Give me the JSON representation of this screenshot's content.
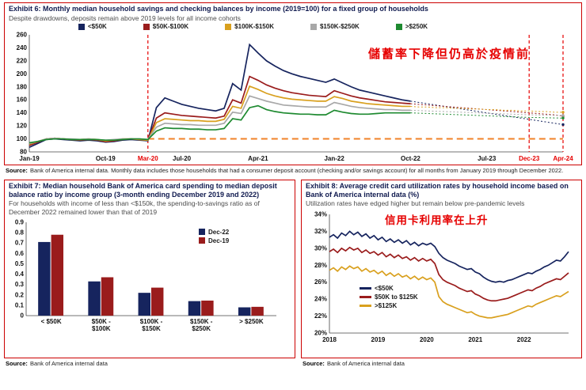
{
  "colors": {
    "navy": "#16245e",
    "dark_red": "#9a1c1c",
    "gold": "#d9a01e",
    "gray": "#a8a8a8",
    "green": "#1e8a30",
    "red_accent": "#e60000",
    "orange": "#f08228"
  },
  "exhibit6": {
    "title": "Exhibit 6: Monthly median household savings and checking balances by income (2019=100)  for a fixed group of households",
    "subtitle": "Despite drawdowns, deposits remain above 2019 levels for all income cohorts",
    "annotation": "儲蓄率下降但仍高於疫情前",
    "source_label": "Source:",
    "source_text": "Bank of America internal data. Monthly data includes those households  that had a consumer  deposit account  (checking  and/or savings account)  for all months from January 2019 through December  2022."
  },
  "exhibit7": {
    "title": "Exhibit 7: Median household Bank of America card spending to median deposit balance ratio  by income group (3-month ending December 2019 and 2022)",
    "subtitle": "For households with income of less than <$150k, the spending-to-savings ratio as of December 2022 remained lower than that of 2019",
    "source_label": "Source:",
    "source_text": "Bank of America internal data"
  },
  "exhibit8": {
    "title": "Exhibit 8: Average credit card utilization rates by household income based on Bank of America internal data (%)",
    "subtitle": "Utilization rates have edged higher but remain below pre-pandemic levels",
    "annotation": "信用卡利用率在上升",
    "source_label": "Source:",
    "source_text": "Bank of America internal data"
  },
  "chart_data": [
    {
      "id": "exhibit6",
      "type": "line",
      "title": "Monthly median household savings and checking balances by income (2019=100)",
      "x_unit": "months since Jan-2019, solid through Oct-22, dotted forecast to Apr-24",
      "ylim": [
        80,
        260
      ],
      "ytick_step": 20,
      "solid_end_index": 45,
      "reference_line": {
        "y": 100,
        "from_index": 14,
        "color": "orange",
        "width": 2,
        "dash": "8,5"
      },
      "vlines": {
        "indexes": [
          14,
          59,
          63
        ],
        "color": "red_accent"
      },
      "xticks": [
        {
          "label": "Jan-19",
          "i": 0
        },
        {
          "label": "Oct-19",
          "i": 9
        },
        {
          "label": "Mar-20",
          "i": 14,
          "red": true
        },
        {
          "label": "Jul-20",
          "i": 18
        },
        {
          "label": "Apr-21",
          "i": 27
        },
        {
          "label": "Jan-22",
          "i": 36
        },
        {
          "label": "Oct-22",
          "i": 45
        },
        {
          "label": "Jul-23",
          "i": 54
        },
        {
          "label": "Dec-23",
          "i": 59,
          "red": true
        },
        {
          "label": "Apr-24",
          "i": 63,
          "red": true
        }
      ],
      "series": [
        {
          "name": "<$50K",
          "color": "navy",
          "values": [
            87,
            93,
            99,
            100,
            99,
            98,
            97,
            98,
            97,
            95,
            96,
            98,
            99,
            98,
            97,
            148,
            163,
            158,
            153,
            150,
            147,
            145,
            143,
            147,
            185,
            175,
            245,
            232,
            220,
            212,
            205,
            200,
            196,
            193,
            190,
            187,
            192,
            186,
            180,
            175,
            172,
            169,
            166,
            163,
            160,
            158,
            156,
            154,
            152,
            150,
            148,
            146,
            144,
            142,
            140,
            138,
            136,
            134,
            132,
            130,
            128,
            126,
            124,
            122
          ]
        },
        {
          "name": "$50K-$100K",
          "color": "dark_red",
          "values": [
            90,
            95,
            100,
            101,
            100,
            99,
            98,
            99,
            98,
            96,
            97,
            99,
            100,
            99,
            98,
            132,
            140,
            138,
            136,
            135,
            134,
            133,
            132,
            135,
            160,
            155,
            196,
            190,
            183,
            178,
            174,
            171,
            169,
            167,
            166,
            165,
            174,
            170,
            166,
            163,
            161,
            159,
            157,
            156,
            155,
            154,
            153,
            152,
            151,
            150,
            149,
            148,
            147,
            146,
            145,
            144,
            143,
            142,
            141,
            140,
            139,
            138,
            137,
            135
          ]
        },
        {
          "name": "$100K-$150K",
          "color": "gold",
          "values": [
            92,
            96,
            100,
            101,
            100,
            99,
            99,
            100,
            99,
            97,
            98,
            100,
            100,
            99,
            98,
            125,
            131,
            130,
            129,
            128,
            128,
            127,
            127,
            130,
            150,
            147,
            181,
            176,
            170,
            166,
            163,
            161,
            160,
            159,
            158,
            158,
            165,
            162,
            158,
            156,
            154,
            153,
            152,
            151,
            150,
            150,
            149,
            149,
            148,
            148,
            147,
            147,
            146,
            146,
            145,
            145,
            144,
            144,
            143,
            143,
            142,
            142,
            141,
            141
          ]
        },
        {
          "name": "$150K-$250K",
          "color": "gray",
          "values": [
            93,
            96,
            100,
            101,
            100,
            100,
            99,
            100,
            99,
            98,
            99,
            100,
            100,
            100,
            99,
            118,
            124,
            123,
            122,
            122,
            121,
            121,
            121,
            124,
            141,
            139,
            166,
            162,
            158,
            155,
            152,
            151,
            150,
            149,
            149,
            149,
            156,
            153,
            150,
            148,
            147,
            146,
            145,
            145,
            144,
            144,
            143.5,
            143,
            142.5,
            142,
            141.5,
            141,
            140.5,
            140,
            139.5,
            139,
            138.5,
            138,
            137.5,
            137,
            136.8,
            136.5,
            136.2,
            136
          ]
        },
        {
          "name": ">$250K",
          "color": "green",
          "values": [
            94,
            96,
            99,
            100,
            100,
            99,
            99,
            99,
            99,
            98,
            98,
            99,
            100,
            100,
            99,
            112,
            117,
            116,
            116,
            115,
            115,
            114,
            114,
            116,
            131,
            129,
            148,
            151,
            145,
            142,
            140,
            139,
            138,
            138,
            137,
            137,
            144,
            141,
            139,
            138,
            138,
            139,
            140,
            140,
            140,
            140,
            139.5,
            139,
            138.5,
            138,
            137.5,
            137,
            136.5,
            136,
            135.5,
            135,
            134.5,
            134,
            133.5,
            133,
            132.8,
            132.5,
            132.2,
            132
          ]
        }
      ],
      "legend_position": "top"
    },
    {
      "id": "exhibit7",
      "type": "bar",
      "title": "Median card spending to median deposit balance ratio by income group",
      "ylim": [
        0,
        0.9
      ],
      "ytick_step": 0.1,
      "ytick_decimals": 1,
      "categories": [
        [
          "< $50K"
        ],
        [
          "$50K -",
          "$100K"
        ],
        [
          "$100K -",
          "$150K"
        ],
        [
          "$150K -",
          "$250K"
        ],
        [
          "> $250K"
        ]
      ],
      "series": [
        {
          "name": "Dec-22",
          "color": "navy",
          "values": [
            0.71,
            0.33,
            0.22,
            0.14,
            0.08
          ]
        },
        {
          "name": "Dec-19",
          "color": "dark_red",
          "values": [
            0.78,
            0.37,
            0.27,
            0.145,
            0.085
          ]
        }
      ],
      "legend_position": "top-right"
    },
    {
      "id": "exhibit8",
      "type": "line",
      "title": "Average credit card utilization rates by household income (%)",
      "x_unit": "months Jan-2018 through Dec-2022",
      "ylim": [
        20,
        34
      ],
      "ytick_step": 2,
      "ytick_suffix": "%",
      "xticks": [
        {
          "label": "2018",
          "i": 0
        },
        {
          "label": "2019",
          "i": 12
        },
        {
          "label": "2020",
          "i": 24
        },
        {
          "label": "2021",
          "i": 36
        },
        {
          "label": "2022",
          "i": 48
        }
      ],
      "series": [
        {
          "name": "<$50K",
          "color": "navy",
          "values": [
            31.3,
            31.6,
            31.2,
            31.8,
            31.5,
            32.0,
            31.6,
            31.9,
            31.4,
            31.7,
            31.2,
            31.5,
            31.0,
            31.3,
            30.8,
            31.1,
            30.7,
            31.0,
            30.6,
            30.9,
            30.4,
            30.7,
            30.3,
            30.6,
            30.4,
            30.6,
            30.2,
            29.4,
            28.9,
            28.6,
            28.4,
            28.2,
            27.9,
            27.7,
            27.5,
            27.6,
            27.2,
            27.0,
            26.6,
            26.3,
            26.1,
            26.0,
            26.1,
            26.0,
            26.2,
            26.3,
            26.5,
            26.7,
            26.9,
            27.1,
            27.0,
            27.3,
            27.5,
            27.8,
            28.0,
            28.3,
            28.6,
            28.5,
            29.0,
            29.6
          ]
        },
        {
          "name": "$50K to $125K",
          "color": "dark_red",
          "values": [
            29.6,
            29.9,
            29.5,
            30.0,
            29.7,
            30.1,
            29.8,
            30.0,
            29.5,
            29.8,
            29.4,
            29.6,
            29.2,
            29.5,
            29.0,
            29.3,
            28.9,
            29.2,
            28.8,
            29.0,
            28.6,
            28.9,
            28.5,
            28.8,
            28.5,
            28.7,
            28.2,
            26.9,
            26.3,
            26.0,
            25.8,
            25.6,
            25.3,
            25.1,
            24.9,
            25.0,
            24.6,
            24.4,
            24.1,
            23.9,
            23.8,
            23.8,
            23.9,
            24.0,
            24.1,
            24.3,
            24.5,
            24.7,
            24.9,
            25.1,
            25.0,
            25.3,
            25.5,
            25.8,
            26.0,
            26.2,
            26.4,
            26.3,
            26.7,
            27.1
          ]
        },
        {
          "name": ">$125K",
          "color": "gold",
          "values": [
            27.4,
            27.7,
            27.3,
            27.8,
            27.5,
            27.9,
            27.6,
            27.8,
            27.3,
            27.6,
            27.2,
            27.4,
            27.0,
            27.3,
            26.8,
            27.1,
            26.7,
            27.0,
            26.6,
            26.8,
            26.4,
            26.7,
            26.3,
            26.6,
            26.3,
            26.5,
            26.0,
            24.3,
            23.7,
            23.4,
            23.2,
            23.0,
            22.8,
            22.6,
            22.4,
            22.5,
            22.2,
            22.0,
            21.9,
            21.8,
            21.8,
            21.9,
            22.0,
            22.1,
            22.2,
            22.4,
            22.6,
            22.8,
            23.0,
            23.2,
            23.1,
            23.4,
            23.6,
            23.8,
            24.0,
            24.2,
            24.4,
            24.3,
            24.6,
            24.9
          ]
        }
      ],
      "legend_position": "center-left"
    }
  ]
}
